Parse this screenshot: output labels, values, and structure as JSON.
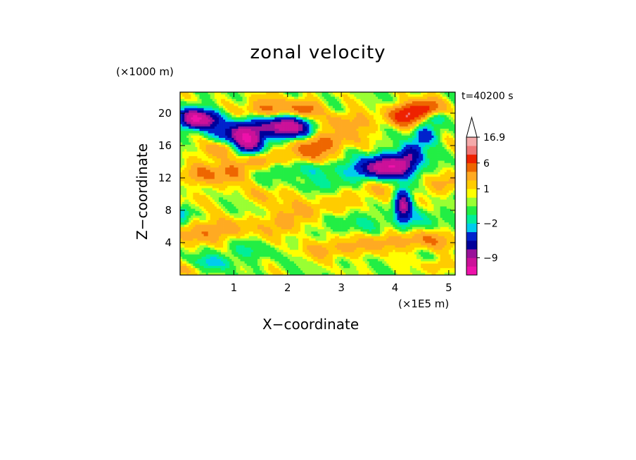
{
  "chart_data": {
    "type": "heatmap",
    "title": "zonal velocity",
    "xlabel": "X−coordinate",
    "ylabel": "Z−coordinate",
    "x_unit": "(×1E5 m)",
    "y_unit": "(×1000 m)",
    "time_label": "t=40200 s",
    "xlim": [
      0,
      5.12
    ],
    "ylim": [
      0,
      22.6
    ],
    "x_ticks": [
      1,
      2,
      3,
      4,
      5
    ],
    "x_tick_labels": [
      "1",
      "2",
      "3",
      "4",
      "5"
    ],
    "y_ticks": [
      4,
      8,
      12,
      16,
      20
    ],
    "y_tick_labels": [
      "4",
      "8",
      "12",
      "16",
      "20"
    ],
    "colorbar": {
      "labels": [
        {
          "value": 16.9,
          "text": "16.9"
        },
        {
          "value": 6,
          "text": "6"
        },
        {
          "value": 1,
          "text": "1"
        },
        {
          "value": -2,
          "text": "−2"
        },
        {
          "value": -9,
          "text": "−9"
        }
      ],
      "levels": [
        -16,
        -13,
        -9,
        -7,
        -5,
        -3,
        -2,
        -1,
        0,
        0.5,
        1,
        2,
        3.5,
        6,
        9,
        12,
        16.9
      ],
      "colors": [
        "#ee11aa",
        "#cc1199",
        "#991199",
        "#000099",
        "#0022cc",
        "#00ccee",
        "#00ee99",
        "#22ee44",
        "#99ff33",
        "#ffff00",
        "#ffcc00",
        "#ffaa22",
        "#ee6600",
        "#ee2200",
        "#ee7777",
        "#f4aaaa"
      ],
      "extend": "max"
    },
    "features": [
      {
        "x": 0.4,
        "z": 19.2,
        "u": -10,
        "sx": 0.25,
        "sz": 0.8
      },
      {
        "x": 0.2,
        "z": 19.5,
        "u": -6,
        "sx": 0.15,
        "sz": 0.8
      },
      {
        "x": 1.25,
        "z": 16.4,
        "u": -11,
        "sx": 0.18,
        "sz": 1.1
      },
      {
        "x": 1.05,
        "z": 17.5,
        "u": -6,
        "sx": 0.3,
        "sz": 0.8
      },
      {
        "x": 2.0,
        "z": 18.2,
        "u": -10,
        "sx": 0.3,
        "sz": 0.9
      },
      {
        "x": 1.6,
        "z": 18.8,
        "u": -4,
        "sx": 0.4,
        "sz": 0.8
      },
      {
        "x": 3.95,
        "z": 13.5,
        "u": -11,
        "sx": 0.3,
        "sz": 0.9
      },
      {
        "x": 3.55,
        "z": 13.0,
        "u": -4,
        "sx": 0.35,
        "sz": 0.9
      },
      {
        "x": 4.3,
        "z": 15.0,
        "u": -6,
        "sx": 0.15,
        "sz": 0.9
      },
      {
        "x": 4.15,
        "z": 8.6,
        "u": -9,
        "sx": 0.1,
        "sz": 1.4
      },
      {
        "x": 4.55,
        "z": 17.2,
        "u": -5,
        "sx": 0.15,
        "sz": 0.8
      },
      {
        "x": 4.7,
        "z": 19.5,
        "u": -3,
        "sx": 0.2,
        "sz": 0.6
      },
      {
        "x": 2.2,
        "z": 13.0,
        "u": -1.5,
        "sx": 0.6,
        "sz": 0.8
      },
      {
        "x": 0.05,
        "z": 7.5,
        "u": -3,
        "sx": 0.08,
        "sz": 0.8
      },
      {
        "x": 0.6,
        "z": 1.5,
        "u": -2.5,
        "sx": 0.3,
        "sz": 0.6
      },
      {
        "x": 4.2,
        "z": 19.7,
        "u": 8,
        "sx": 0.2,
        "sz": 0.8
      },
      {
        "x": 4.55,
        "z": 20.5,
        "u": 7,
        "sx": 0.2,
        "sz": 0.8
      },
      {
        "x": 1.65,
        "z": 20.3,
        "u": 4,
        "sx": 0.35,
        "sz": 1.0
      },
      {
        "x": 2.35,
        "z": 20.5,
        "u": 3.5,
        "sx": 0.2,
        "sz": 0.8
      },
      {
        "x": 0.95,
        "z": 12.8,
        "u": 4,
        "sx": 0.22,
        "sz": 1.0
      },
      {
        "x": 0.75,
        "z": 15.5,
        "u": 3,
        "sx": 0.25,
        "sz": 0.8
      },
      {
        "x": 1.5,
        "z": 14.3,
        "u": 3,
        "sx": 0.25,
        "sz": 0.8
      },
      {
        "x": 2.4,
        "z": 15.2,
        "u": 4,
        "sx": 0.25,
        "sz": 0.9
      },
      {
        "x": 2.75,
        "z": 16.5,
        "u": 3,
        "sx": 0.35,
        "sz": 0.8
      },
      {
        "x": 0.35,
        "z": 12.4,
        "u": 3,
        "sx": 0.25,
        "sz": 0.9
      },
      {
        "x": 0.4,
        "z": 5.2,
        "u": 3,
        "sx": 0.25,
        "sz": 1.0
      },
      {
        "x": 1.0,
        "z": 5.8,
        "u": 2,
        "sx": 0.3,
        "sz": 0.9
      },
      {
        "x": 1.9,
        "z": 6.3,
        "u": 3,
        "sx": 0.2,
        "sz": 1.0
      },
      {
        "x": 2.5,
        "z": 8.2,
        "u": 2,
        "sx": 0.4,
        "sz": 0.9
      },
      {
        "x": 2.8,
        "z": 3.2,
        "u": 2.5,
        "sx": 0.35,
        "sz": 0.8
      },
      {
        "x": 3.5,
        "z": 10.5,
        "u": 2,
        "sx": 0.35,
        "sz": 0.9
      },
      {
        "x": 3.7,
        "z": 4.0,
        "u": 2.5,
        "sx": 0.3,
        "sz": 0.8
      },
      {
        "x": 4.6,
        "z": 4.3,
        "u": 3,
        "sx": 0.35,
        "sz": 0.8
      },
      {
        "x": 4.9,
        "z": 11.2,
        "u": 2.5,
        "sx": 0.2,
        "sz": 0.9
      },
      {
        "x": 3.1,
        "z": 18.8,
        "u": 2.5,
        "sx": 0.4,
        "sz": 1.0
      },
      {
        "x": 1.75,
        "z": 10.0,
        "u": 1.5,
        "sx": 0.4,
        "sz": 0.8
      },
      {
        "x": 0.2,
        "z": 9.2,
        "u": 0.8,
        "sx": 0.3,
        "sz": 0.8
      },
      {
        "x": 2.7,
        "z": 11.0,
        "u": -1.5,
        "sx": 0.45,
        "sz": 0.8
      },
      {
        "x": 3.3,
        "z": 6.5,
        "u": -1.2,
        "sx": 0.5,
        "sz": 0.9
      },
      {
        "x": 1.2,
        "z": 3.0,
        "u": -1.2,
        "sx": 0.4,
        "sz": 0.7
      },
      {
        "x": 4.5,
        "z": 7.0,
        "u": -1.5,
        "sx": 0.3,
        "sz": 0.9
      },
      {
        "x": 4.8,
        "z": 1.2,
        "u": 1.5,
        "sx": 0.2,
        "sz": 0.6
      },
      {
        "x": 0.1,
        "z": 0.8,
        "u": 1.5,
        "sx": 0.2,
        "sz": 0.6
      }
    ]
  }
}
